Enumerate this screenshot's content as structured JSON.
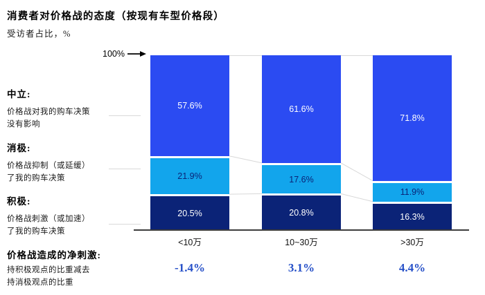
{
  "header": {
    "title": "消费者对价格战的态度（按现有车型价格段）",
    "subtitle": "受访者占比，%"
  },
  "legend_sections": [
    {
      "title": "中立:",
      "description": "价格战对我的购车决策\n没有影响"
    },
    {
      "title": "消极:",
      "description": "价格战抑制（或延缓）\n了我的购车决策"
    },
    {
      "title": "积极:",
      "description": "价格战刺激（或加速）\n了我的购车决策"
    }
  ],
  "footer": {
    "title": "价格战造成的净刺激:",
    "description": "持积极观点的比重减去\n持消极观点的比重"
  },
  "chart_data": {
    "type": "bar",
    "subtype": "stacked-percent",
    "title": "消费者对价格战的态度（按现有车型价格段）",
    "ylabel": "受访者占比, %",
    "ylim": [
      0,
      100
    ],
    "top_axis_label": "100%",
    "categories": [
      "<10万",
      "10~30万",
      ">30万"
    ],
    "series": [
      {
        "name": "中立",
        "key": "neutral",
        "color": "#2B4BF2",
        "label_color": "#FFFFFF",
        "values": [
          57.6,
          61.6,
          71.8
        ]
      },
      {
        "name": "消极",
        "key": "negative",
        "color": "#12A5EC",
        "label_color": "#0B2377",
        "values": [
          21.9,
          17.6,
          11.9
        ]
      },
      {
        "name": "积极",
        "key": "positive",
        "color": "#0B2377",
        "label_color": "#FFFFFF",
        "values": [
          20.5,
          20.8,
          16.3
        ]
      }
    ],
    "net_row": {
      "label": "价格战造成的净刺激",
      "values": [
        "-1.4%",
        "3.1%",
        "4.4%"
      ],
      "color": "#2650C8"
    },
    "connector_color": "#D8D8D8",
    "legend_position": "left",
    "grid": false
  }
}
